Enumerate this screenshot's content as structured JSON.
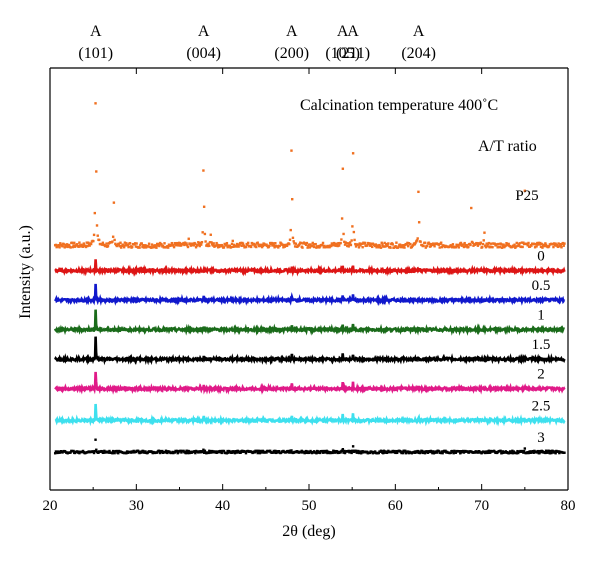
{
  "chart_data": {
    "type": "line",
    "xlabel": "2θ (deg)",
    "ylabel": "Intensity (a.u.)",
    "xlim": [
      20,
      80
    ],
    "xticks": [
      20,
      30,
      40,
      50,
      60,
      70,
      80
    ],
    "grid": false,
    "annotation_title": "Calcination temperature 400˚C",
    "legend_title": "A/T ratio",
    "peak_labels": [
      {
        "x": 25.3,
        "phase": "A",
        "hkl": "(101)"
      },
      {
        "x": 37.8,
        "phase": "A",
        "hkl": "(004)"
      },
      {
        "x": 48.0,
        "phase": "A",
        "hkl": "(200)"
      },
      {
        "x": 53.9,
        "phase": "A",
        "hkl": "(105)"
      },
      {
        "x": 55.1,
        "phase": "A",
        "hkl": "(211)"
      },
      {
        "x": 62.7,
        "phase": "A",
        "hkl": "(204)"
      }
    ],
    "series": [
      {
        "name": "P25",
        "color": "#f07020",
        "style": "dots",
        "baseline": 0.58,
        "noise": 0.006,
        "peaks": [
          [
            25.3,
            0.052,
            0.42
          ],
          [
            27.4,
            0.04,
            0.1
          ],
          [
            36.1,
            0.013,
            0.06
          ],
          [
            37.8,
            0.04,
            0.28
          ],
          [
            38.6,
            0.012,
            0.1
          ],
          [
            41.2,
            0.01,
            0.06
          ],
          [
            44.0,
            0.006,
            0.04
          ],
          [
            48.0,
            0.036,
            0.38
          ],
          [
            53.9,
            0.037,
            0.24
          ],
          [
            55.1,
            0.037,
            0.24
          ],
          [
            56.6,
            0.008,
            0.05
          ],
          [
            62.7,
            0.037,
            0.19
          ],
          [
            68.8,
            0.02,
            0.09
          ],
          [
            70.3,
            0.018,
            0.07
          ],
          [
            75.0,
            0.022,
            0.13
          ]
        ]
      },
      {
        "name": "0",
        "color": "#dd1515",
        "style": "line",
        "baseline": 0.52,
        "noise": 0.003,
        "peaks": [
          [
            25.3,
            0.012,
            0.1
          ],
          [
            37.8,
            0.012,
            0.015
          ],
          [
            48.0,
            0.012,
            0.025
          ],
          [
            53.9,
            0.012,
            0.012
          ],
          [
            55.1,
            0.012,
            0.012
          ],
          [
            62.7,
            0.012,
            0.012
          ],
          [
            75.0,
            0.012,
            0.006
          ]
        ]
      },
      {
        "name": "0.5",
        "color": "#1018cc",
        "style": "line",
        "baseline": 0.45,
        "noise": 0.003,
        "peaks": [
          [
            25.3,
            0.016,
            0.1
          ],
          [
            37.8,
            0.016,
            0.018
          ],
          [
            48.0,
            0.016,
            0.025
          ],
          [
            53.9,
            0.016,
            0.013
          ],
          [
            55.1,
            0.016,
            0.013
          ],
          [
            62.7,
            0.016,
            0.012
          ],
          [
            75.0,
            0.016,
            0.006
          ]
        ]
      },
      {
        "name": "1",
        "color": "#1a6b1a",
        "style": "line",
        "baseline": 0.38,
        "noise": 0.003,
        "peaks": [
          [
            25.3,
            0.016,
            0.12
          ],
          [
            37.8,
            0.016,
            0.018
          ],
          [
            48.0,
            0.016,
            0.025
          ],
          [
            53.9,
            0.016,
            0.013
          ],
          [
            55.1,
            0.016,
            0.013
          ],
          [
            62.7,
            0.016,
            0.012
          ],
          [
            75.0,
            0.016,
            0.006
          ]
        ]
      },
      {
        "name": "1.5",
        "color": "#000000",
        "style": "line",
        "baseline": 0.31,
        "noise": 0.003,
        "peaks": [
          [
            25.3,
            0.016,
            0.13
          ],
          [
            37.8,
            0.016,
            0.018
          ],
          [
            48.0,
            0.016,
            0.025
          ],
          [
            53.9,
            0.016,
            0.013
          ],
          [
            55.1,
            0.016,
            0.013
          ],
          [
            62.7,
            0.016,
            0.012
          ],
          [
            75.0,
            0.016,
            0.006
          ]
        ]
      },
      {
        "name": "2",
        "color": "#e01a88",
        "style": "line",
        "baseline": 0.24,
        "noise": 0.003,
        "peaks": [
          [
            25.3,
            0.016,
            0.11
          ],
          [
            37.8,
            0.016,
            0.018
          ],
          [
            48.0,
            0.016,
            0.025
          ],
          [
            53.9,
            0.016,
            0.015
          ],
          [
            55.1,
            0.016,
            0.015
          ],
          [
            62.7,
            0.016,
            0.012
          ],
          [
            75.0,
            0.016,
            0.006
          ]
        ]
      },
      {
        "name": "2.5",
        "color": "#3ee0ee",
        "style": "line",
        "baseline": 0.165,
        "noise": 0.003,
        "peaks": [
          [
            25.3,
            0.016,
            0.1
          ],
          [
            37.8,
            0.016,
            0.02
          ],
          [
            48.0,
            0.016,
            0.03
          ],
          [
            53.9,
            0.016,
            0.018
          ],
          [
            55.1,
            0.016,
            0.018
          ],
          [
            62.7,
            0.016,
            0.014
          ],
          [
            75.0,
            0.016,
            0.008
          ]
        ]
      },
      {
        "name": "3",
        "color": "#000000",
        "style": "dots",
        "baseline": 0.09,
        "noise": 0.003,
        "peaks": [
          [
            25.3,
            0.014,
            0.11
          ],
          [
            37.8,
            0.014,
            0.018
          ],
          [
            48.0,
            0.014,
            0.028
          ],
          [
            53.9,
            0.014,
            0.016
          ],
          [
            55.1,
            0.014,
            0.016
          ],
          [
            62.7,
            0.014,
            0.013
          ],
          [
            75.0,
            0.014,
            0.008
          ]
        ]
      }
    ]
  }
}
